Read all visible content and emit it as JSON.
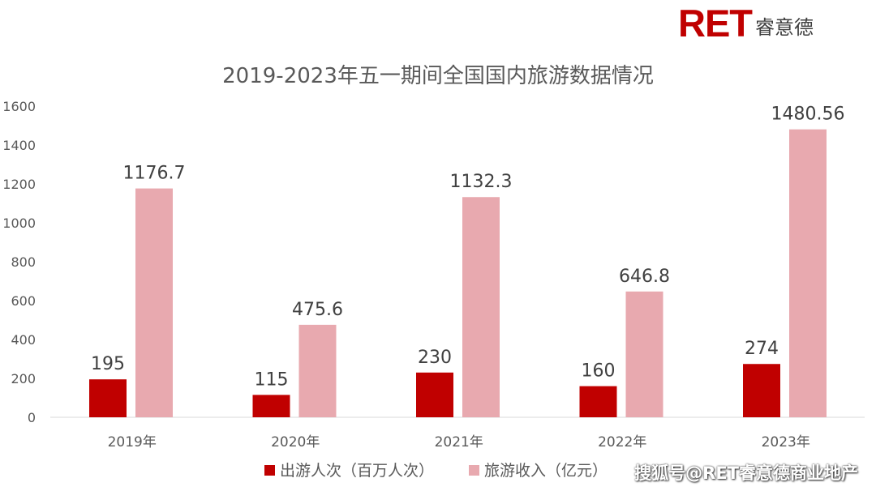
{
  "logo": {
    "text": "RET",
    "subtext": "睿意德"
  },
  "watermark": "搜狐号@RET睿意德商业地产",
  "colors": {
    "series1": "#c00000",
    "series2": "#e8a9af",
    "text": "#595959",
    "axis": "#d9d9d9"
  },
  "chart_data": {
    "type": "bar",
    "title": "2019-2023年五一期间全国国内旅游数据情况",
    "categories": [
      "2019年",
      "2020年",
      "2021年",
      "2022年",
      "2023年"
    ],
    "series": [
      {
        "name": "出游人次（百万人次）",
        "values": [
          195,
          115,
          230,
          160,
          274
        ],
        "labels": [
          "195",
          "115",
          "230",
          "160",
          "274"
        ]
      },
      {
        "name": "旅游收入（亿元）",
        "values": [
          1176.7,
          475.6,
          1132.3,
          646.8,
          1480.56
        ],
        "labels": [
          "1176.7",
          "475.6",
          "1132.3",
          "646.8",
          "1480.56"
        ]
      }
    ],
    "yticks": [
      "0",
      "200",
      "400",
      "600",
      "800",
      "1000",
      "1200",
      "1400",
      "1600"
    ],
    "ylim": [
      0,
      1600
    ],
    "grid": false,
    "legend": "bottom"
  }
}
